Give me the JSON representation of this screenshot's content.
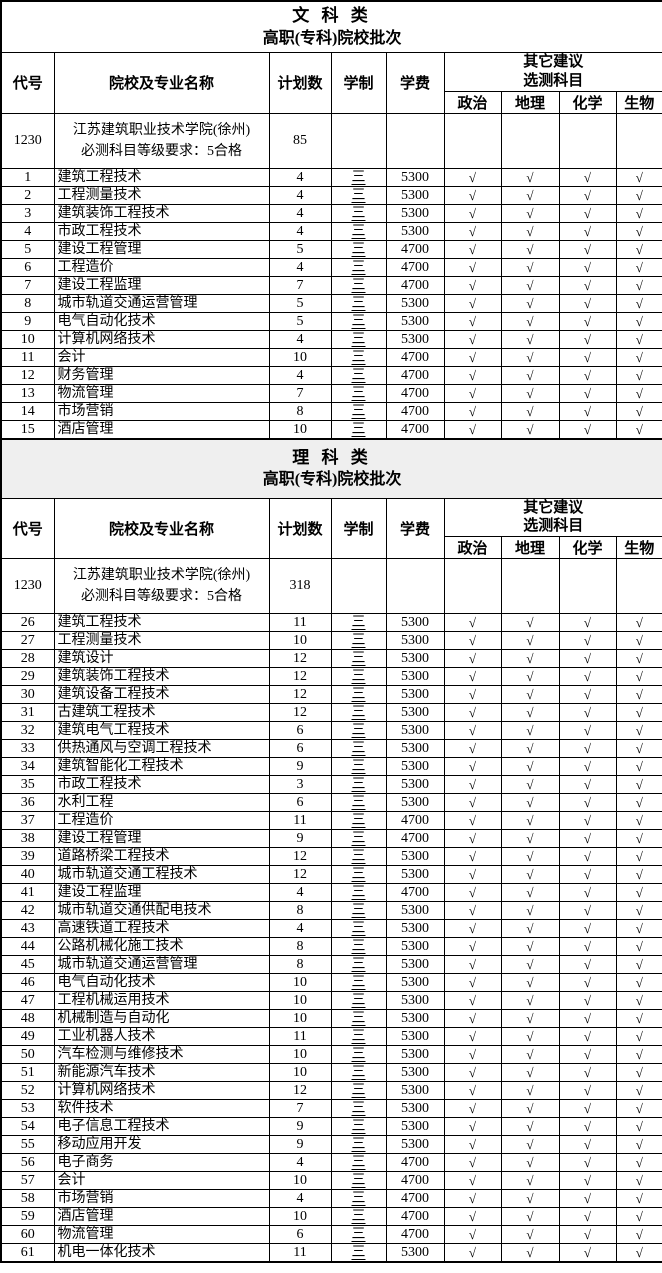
{
  "colors": {
    "border": "#000000",
    "text": "#000000",
    "arts_title_bg": "#ffffff",
    "science_title_bg": "#efefef"
  },
  "check_glyph": "√",
  "columns": {
    "code": "代号",
    "school_major": "院校及专业名称",
    "plan": "计划数",
    "duration": "学制",
    "fee": "学费",
    "other_suggest_line1": "其它建议",
    "other_suggest_line2": "选测科目",
    "subjects": [
      "政治",
      "地理",
      "化学",
      "生物"
    ]
  },
  "sections": [
    {
      "title_line1": "文 科 类",
      "title_line2": "高职(专科)院校批次",
      "school": {
        "code": "1230",
        "name_line1": "江苏建筑职业技术学院(徐州)",
        "name_line2": "必测科目等级要求：5合格",
        "plan": "85"
      },
      "rows": [
        {
          "no": "1",
          "major": "建筑工程技术",
          "plan": "4",
          "duration": "三",
          "fee": "5300",
          "checks": [
            "√",
            "√",
            "√",
            "√"
          ]
        },
        {
          "no": "2",
          "major": "工程测量技术",
          "plan": "4",
          "duration": "三",
          "fee": "5300",
          "checks": [
            "√",
            "√",
            "√",
            "√"
          ]
        },
        {
          "no": "3",
          "major": "建筑装饰工程技术",
          "plan": "4",
          "duration": "三",
          "fee": "5300",
          "checks": [
            "√",
            "√",
            "√",
            "√"
          ]
        },
        {
          "no": "4",
          "major": "市政工程技术",
          "plan": "4",
          "duration": "三",
          "fee": "5300",
          "checks": [
            "√",
            "√",
            "√",
            "√"
          ]
        },
        {
          "no": "5",
          "major": "建设工程管理",
          "plan": "5",
          "duration": "三",
          "fee": "4700",
          "checks": [
            "√",
            "√",
            "√",
            "√"
          ]
        },
        {
          "no": "6",
          "major": "工程造价",
          "plan": "4",
          "duration": "三",
          "fee": "4700",
          "checks": [
            "√",
            "√",
            "√",
            "√"
          ]
        },
        {
          "no": "7",
          "major": "建设工程监理",
          "plan": "7",
          "duration": "三",
          "fee": "4700",
          "checks": [
            "√",
            "√",
            "√",
            "√"
          ]
        },
        {
          "no": "8",
          "major": "城市轨道交通运营管理",
          "plan": "5",
          "duration": "三",
          "fee": "5300",
          "checks": [
            "√",
            "√",
            "√",
            "√"
          ]
        },
        {
          "no": "9",
          "major": "电气自动化技术",
          "plan": "5",
          "duration": "三",
          "fee": "5300",
          "checks": [
            "√",
            "√",
            "√",
            "√"
          ]
        },
        {
          "no": "10",
          "major": "计算机网络技术",
          "plan": "4",
          "duration": "三",
          "fee": "5300",
          "checks": [
            "√",
            "√",
            "√",
            "√"
          ]
        },
        {
          "no": "11",
          "major": "会计",
          "plan": "10",
          "duration": "三",
          "fee": "4700",
          "checks": [
            "√",
            "√",
            "√",
            "√"
          ]
        },
        {
          "no": "12",
          "major": "财务管理",
          "plan": "4",
          "duration": "三",
          "fee": "4700",
          "checks": [
            "√",
            "√",
            "√",
            "√"
          ]
        },
        {
          "no": "13",
          "major": "物流管理",
          "plan": "7",
          "duration": "三",
          "fee": "4700",
          "checks": [
            "√",
            "√",
            "√",
            "√"
          ]
        },
        {
          "no": "14",
          "major": "市场营销",
          "plan": "8",
          "duration": "三",
          "fee": "4700",
          "checks": [
            "√",
            "√",
            "√",
            "√"
          ]
        },
        {
          "no": "15",
          "major": "酒店管理",
          "plan": "10",
          "duration": "三",
          "fee": "4700",
          "checks": [
            "√",
            "√",
            "√",
            "√"
          ]
        }
      ]
    },
    {
      "title_line1": "理 科 类",
      "title_line2": "高职(专科)院校批次",
      "school": {
        "code": "1230",
        "name_line1": "江苏建筑职业技术学院(徐州)",
        "name_line2": "必测科目等级要求：5合格",
        "plan": "318"
      },
      "rows": [
        {
          "no": "26",
          "major": "建筑工程技术",
          "plan": "11",
          "duration": "三",
          "fee": "5300",
          "checks": [
            "√",
            "√",
            "√",
            "√"
          ]
        },
        {
          "no": "27",
          "major": "工程测量技术",
          "plan": "10",
          "duration": "三",
          "fee": "5300",
          "checks": [
            "√",
            "√",
            "√",
            "√"
          ]
        },
        {
          "no": "28",
          "major": "建筑设计",
          "plan": "12",
          "duration": "三",
          "fee": "5300",
          "checks": [
            "√",
            "√",
            "√",
            "√"
          ]
        },
        {
          "no": "29",
          "major": "建筑装饰工程技术",
          "plan": "12",
          "duration": "三",
          "fee": "5300",
          "checks": [
            "√",
            "√",
            "√",
            "√"
          ]
        },
        {
          "no": "30",
          "major": "建筑设备工程技术",
          "plan": "12",
          "duration": "三",
          "fee": "5300",
          "checks": [
            "√",
            "√",
            "√",
            "√"
          ]
        },
        {
          "no": "31",
          "major": "古建筑工程技术",
          "plan": "12",
          "duration": "三",
          "fee": "5300",
          "checks": [
            "√",
            "√",
            "√",
            "√"
          ]
        },
        {
          "no": "32",
          "major": "建筑电气工程技术",
          "plan": "6",
          "duration": "三",
          "fee": "5300",
          "checks": [
            "√",
            "√",
            "√",
            "√"
          ]
        },
        {
          "no": "33",
          "major": "供热通风与空调工程技术",
          "plan": "6",
          "duration": "三",
          "fee": "5300",
          "checks": [
            "√",
            "√",
            "√",
            "√"
          ]
        },
        {
          "no": "34",
          "major": "建筑智能化工程技术",
          "plan": "9",
          "duration": "三",
          "fee": "5300",
          "checks": [
            "√",
            "√",
            "√",
            "√"
          ]
        },
        {
          "no": "35",
          "major": "市政工程技术",
          "plan": "3",
          "duration": "三",
          "fee": "5300",
          "checks": [
            "√",
            "√",
            "√",
            "√"
          ]
        },
        {
          "no": "36",
          "major": "水利工程",
          "plan": "6",
          "duration": "三",
          "fee": "5300",
          "checks": [
            "√",
            "√",
            "√",
            "√"
          ]
        },
        {
          "no": "37",
          "major": "工程造价",
          "plan": "11",
          "duration": "三",
          "fee": "4700",
          "checks": [
            "√",
            "√",
            "√",
            "√"
          ]
        },
        {
          "no": "38",
          "major": "建设工程管理",
          "plan": "9",
          "duration": "三",
          "fee": "4700",
          "checks": [
            "√",
            "√",
            "√",
            "√"
          ]
        },
        {
          "no": "39",
          "major": "道路桥梁工程技术",
          "plan": "12",
          "duration": "三",
          "fee": "5300",
          "checks": [
            "√",
            "√",
            "√",
            "√"
          ]
        },
        {
          "no": "40",
          "major": "城市轨道交通工程技术",
          "plan": "12",
          "duration": "三",
          "fee": "5300",
          "checks": [
            "√",
            "√",
            "√",
            "√"
          ]
        },
        {
          "no": "41",
          "major": "建设工程监理",
          "plan": "4",
          "duration": "三",
          "fee": "4700",
          "checks": [
            "√",
            "√",
            "√",
            "√"
          ]
        },
        {
          "no": "42",
          "major": "城市轨道交通供配电技术",
          "plan": "8",
          "duration": "三",
          "fee": "5300",
          "checks": [
            "√",
            "√",
            "√",
            "√"
          ]
        },
        {
          "no": "43",
          "major": "高速铁道工程技术",
          "plan": "4",
          "duration": "三",
          "fee": "5300",
          "checks": [
            "√",
            "√",
            "√",
            "√"
          ]
        },
        {
          "no": "44",
          "major": "公路机械化施工技术",
          "plan": "8",
          "duration": "三",
          "fee": "5300",
          "checks": [
            "√",
            "√",
            "√",
            "√"
          ]
        },
        {
          "no": "45",
          "major": "城市轨道交通运营管理",
          "plan": "8",
          "duration": "三",
          "fee": "5300",
          "checks": [
            "√",
            "√",
            "√",
            "√"
          ]
        },
        {
          "no": "46",
          "major": "电气自动化技术",
          "plan": "10",
          "duration": "三",
          "fee": "5300",
          "checks": [
            "√",
            "√",
            "√",
            "√"
          ]
        },
        {
          "no": "47",
          "major": "工程机械运用技术",
          "plan": "10",
          "duration": "三",
          "fee": "5300",
          "checks": [
            "√",
            "√",
            "√",
            "√"
          ]
        },
        {
          "no": "48",
          "major": "机械制造与自动化",
          "plan": "10",
          "duration": "三",
          "fee": "5300",
          "checks": [
            "√",
            "√",
            "√",
            "√"
          ]
        },
        {
          "no": "49",
          "major": "工业机器人技术",
          "plan": "11",
          "duration": "三",
          "fee": "5300",
          "checks": [
            "√",
            "√",
            "√",
            "√"
          ]
        },
        {
          "no": "50",
          "major": "汽车检测与维修技术",
          "plan": "10",
          "duration": "三",
          "fee": "5300",
          "checks": [
            "√",
            "√",
            "√",
            "√"
          ]
        },
        {
          "no": "51",
          "major": "新能源汽车技术",
          "plan": "10",
          "duration": "三",
          "fee": "5300",
          "checks": [
            "√",
            "√",
            "√",
            "√"
          ]
        },
        {
          "no": "52",
          "major": "计算机网络技术",
          "plan": "12",
          "duration": "三",
          "fee": "5300",
          "checks": [
            "√",
            "√",
            "√",
            "√"
          ]
        },
        {
          "no": "53",
          "major": "软件技术",
          "plan": "7",
          "duration": "三",
          "fee": "5300",
          "checks": [
            "√",
            "√",
            "√",
            "√"
          ]
        },
        {
          "no": "54",
          "major": "电子信息工程技术",
          "plan": "9",
          "duration": "三",
          "fee": "5300",
          "checks": [
            "√",
            "√",
            "√",
            "√"
          ]
        },
        {
          "no": "55",
          "major": "移动应用开发",
          "plan": "9",
          "duration": "三",
          "fee": "5300",
          "checks": [
            "√",
            "√",
            "√",
            "√"
          ]
        },
        {
          "no": "56",
          "major": "电子商务",
          "plan": "4",
          "duration": "三",
          "fee": "4700",
          "checks": [
            "√",
            "√",
            "√",
            "√"
          ]
        },
        {
          "no": "57",
          "major": "会计",
          "plan": "10",
          "duration": "三",
          "fee": "4700",
          "checks": [
            "√",
            "√",
            "√",
            "√"
          ]
        },
        {
          "no": "58",
          "major": "市场营销",
          "plan": "4",
          "duration": "三",
          "fee": "4700",
          "checks": [
            "√",
            "√",
            "√",
            "√"
          ]
        },
        {
          "no": "59",
          "major": "酒店管理",
          "plan": "10",
          "duration": "三",
          "fee": "4700",
          "checks": [
            "√",
            "√",
            "√",
            "√"
          ]
        },
        {
          "no": "60",
          "major": "物流管理",
          "plan": "6",
          "duration": "三",
          "fee": "4700",
          "checks": [
            "√",
            "√",
            "√",
            "√"
          ]
        },
        {
          "no": "61",
          "major": "机电一体化技术",
          "plan": "11",
          "duration": "三",
          "fee": "5300",
          "checks": [
            "√",
            "√",
            "√",
            "√"
          ]
        }
      ]
    }
  ]
}
